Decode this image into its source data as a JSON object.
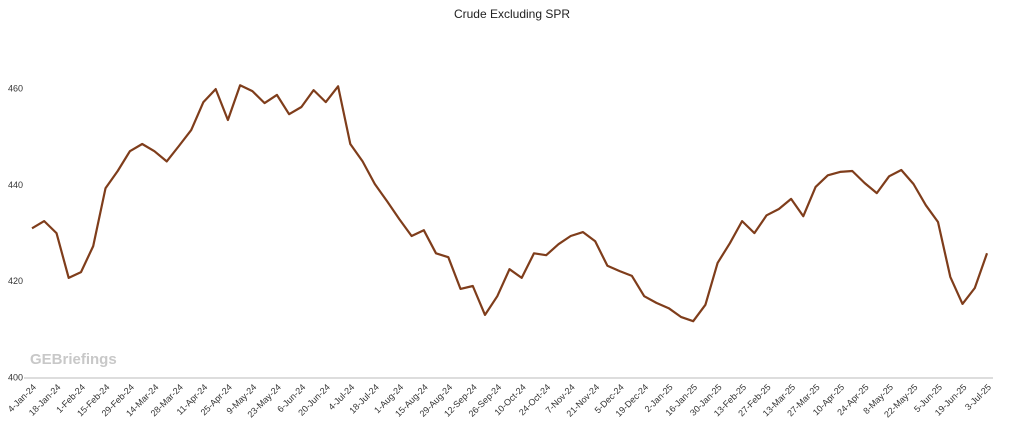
{
  "chart_data": {
    "type": "line",
    "title": "Crude Excluding SPR",
    "watermark": "GEBriefings",
    "categories": [
      "4-Jan-24",
      null,
      "18-Jan-24",
      null,
      "1-Feb-24",
      null,
      "15-Feb-24",
      null,
      "29-Feb-24",
      null,
      "14-Mar-24",
      null,
      "28-Mar-24",
      null,
      "11-Apr-24",
      null,
      "25-Apr-24",
      null,
      "9-May-24",
      null,
      "23-May-24",
      null,
      "6-Jun-24",
      null,
      "20-Jun-24",
      null,
      "4-Jul-24",
      null,
      "18-Jul-24",
      null,
      "1-Aug-24",
      null,
      "15-Aug-24",
      null,
      "29-Aug-24",
      null,
      "12-Sep-24",
      null,
      "26-Sep-24",
      null,
      "10-Oct-24",
      null,
      "24-Oct-24",
      null,
      "7-Nov-24",
      null,
      "21-Nov-24",
      null,
      "5-Dec-24",
      null,
      "19-Dec-24",
      null,
      "2-Jan-25",
      null,
      "16-Jan-25",
      null,
      "30-Jan-25",
      null,
      "13-Feb-25",
      null,
      "27-Feb-25",
      null,
      "13-Mar-25",
      null,
      "27-Mar-25",
      null,
      "10-Apr-25",
      null,
      "24-Apr-25",
      null,
      "8-May-25",
      null,
      "22-May-25",
      null,
      "5-Jun-25",
      null,
      "19-Jun-25",
      null,
      "3-Jul-25"
    ],
    "series": [
      {
        "name": "Crude Excluding SPR",
        "color": "#7f3d1b",
        "values": [
          431.1,
          432.6,
          430.1,
          420.8,
          422.0,
          427.4,
          439.4,
          443.0,
          447.1,
          448.6,
          447.1,
          445.0,
          448.2,
          451.5,
          457.3,
          460.0,
          453.6,
          460.8,
          459.6,
          457.1,
          458.8,
          454.8,
          456.3,
          459.8,
          457.3,
          460.6,
          448.6,
          445.0,
          440.3,
          436.7,
          433.0,
          429.5,
          430.7,
          425.9,
          425.1,
          418.5,
          419.1,
          413.1,
          417.0,
          422.6,
          420.8,
          425.9,
          425.5,
          427.8,
          429.5,
          430.3,
          428.4,
          423.3,
          422.2,
          421.2,
          417.0,
          415.6,
          414.5,
          412.7,
          411.8,
          415.2,
          423.9,
          428.0,
          432.6,
          430.1,
          433.8,
          435.1,
          437.2,
          433.6,
          439.7,
          442.1,
          442.8,
          443.0,
          440.5,
          438.4,
          441.9,
          443.2,
          440.3,
          435.9,
          432.4,
          421.0,
          415.4,
          418.7,
          425.9
        ]
      }
    ],
    "ylim": [
      400,
      470
    ],
    "yticks": [
      400,
      420,
      440,
      460
    ],
    "grid": false
  }
}
